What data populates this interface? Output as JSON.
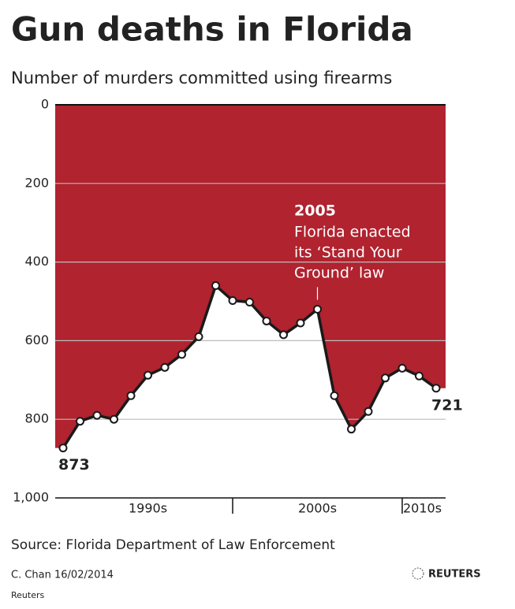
{
  "chart_data": {
    "type": "area",
    "title": "Gun deaths in Florida",
    "subtitle": "Number of murders committed using firearms",
    "categories": [
      null,
      null,
      null,
      null,
      null,
      null,
      null,
      null,
      null,
      null,
      null,
      null,
      null,
      null,
      null,
      null,
      null,
      null,
      null,
      null,
      null,
      null,
      null
    ],
    "decade_labels": [
      "1990s",
      "2000s",
      "2010s"
    ],
    "values": [
      873,
      805,
      790,
      800,
      740,
      688,
      668,
      635,
      590,
      460,
      498,
      502,
      550,
      585,
      555,
      520,
      740,
      825,
      780,
      695,
      670,
      690,
      721
    ],
    "ylim": [
      0,
      1000
    ],
    "yticks": [
      0,
      200,
      400,
      600,
      800,
      {
        "value": 1000,
        "label": "1,000"
      }
    ],
    "inverted": true,
    "grid": true,
    "fill_color": "#b0232f",
    "line_color": "#1a1a1a",
    "annotation": {
      "title": "2005",
      "lines": [
        "Florida enacted",
        "its ‘Stand Your",
        "Ground’ law"
      ],
      "index": 15
    },
    "source": "Source: Florida Department of Law Enforcement",
    "credit": "C. Chan  16/02/2014",
    "logo": "REUTERS",
    "footer": "Reuters"
  }
}
